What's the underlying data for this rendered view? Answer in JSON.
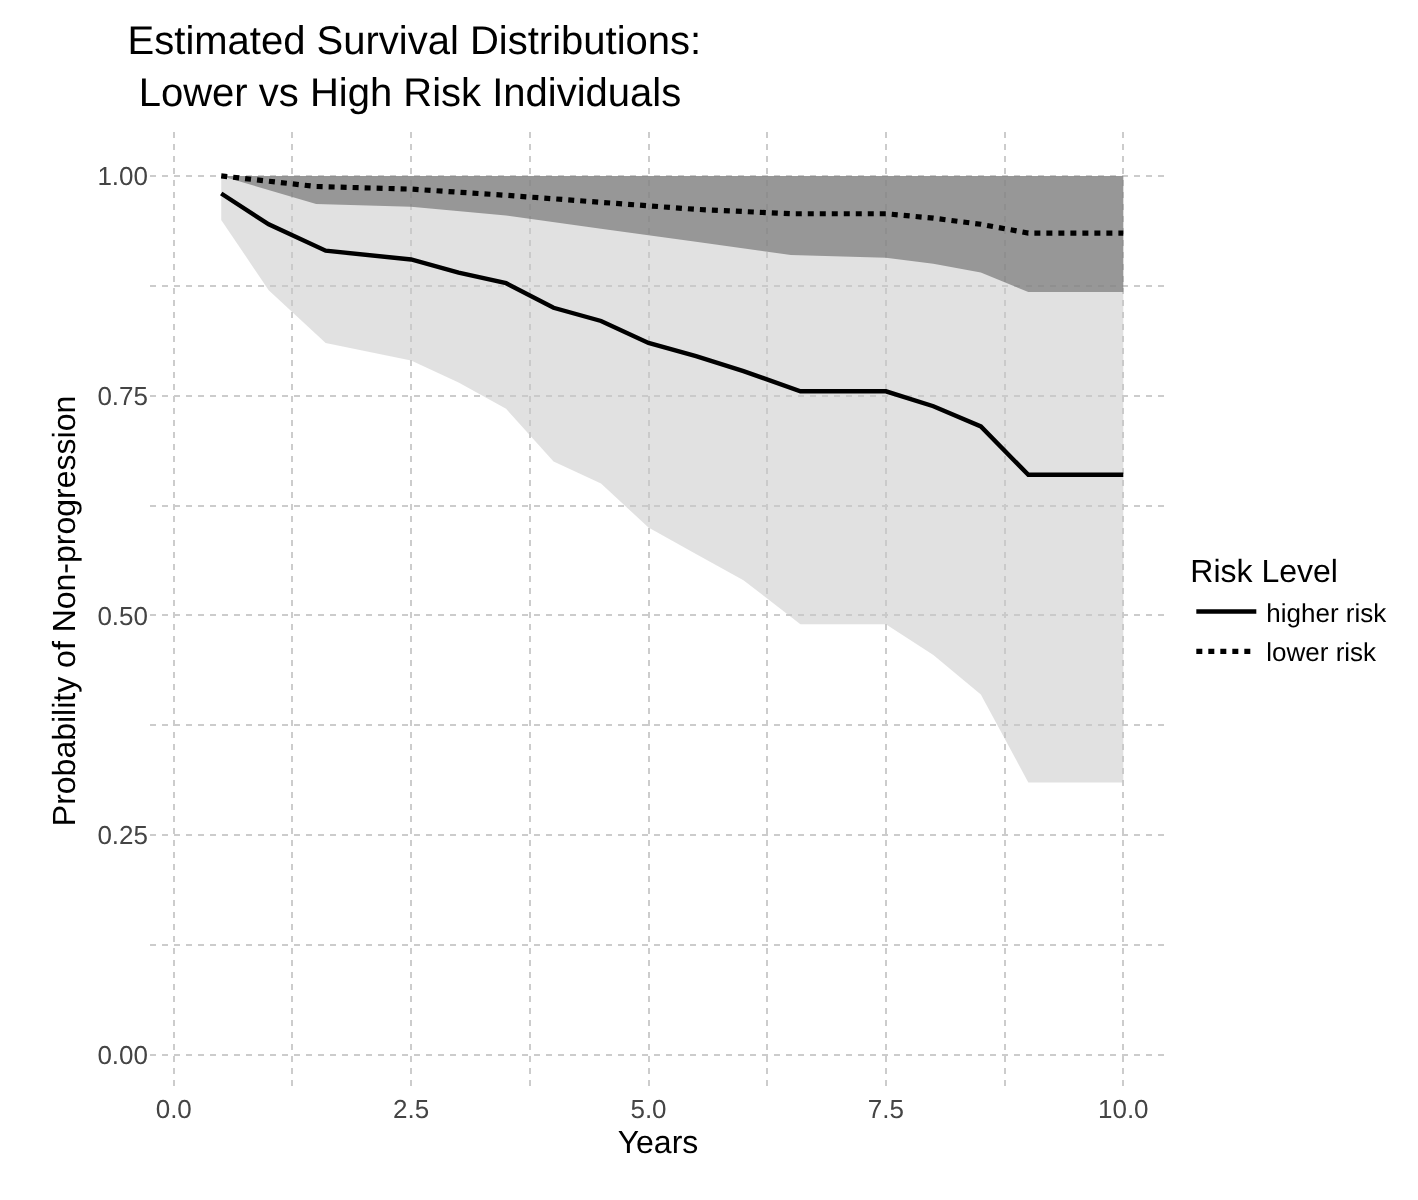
{
  "chart_data": {
    "type": "step",
    "title": "Estimated Survival Distributions:\n Lower vs High Risk Individuals",
    "xlabel": "Years",
    "ylabel": "Probability of Non-progression",
    "legend_title": "Risk Level",
    "legend": "right",
    "grid": true,
    "xlim": [
      -0.25,
      10.45
    ],
    "ylim": [
      -0.04,
      1.05
    ],
    "xticks": [
      {
        "value": 0,
        "label": "0.0"
      },
      {
        "value": 1.25,
        "label": null
      },
      {
        "value": 2.5,
        "label": "2.5"
      },
      {
        "value": 3.75,
        "label": null
      },
      {
        "value": 5,
        "label": "5.0"
      },
      {
        "value": 6.25,
        "label": null
      },
      {
        "value": 7.5,
        "label": "7.5"
      },
      {
        "value": 8.75,
        "label": null
      },
      {
        "value": 10,
        "label": "10.0"
      }
    ],
    "yticks": [
      {
        "value": 0,
        "label": "0.00"
      },
      {
        "value": 0.125,
        "label": null
      },
      {
        "value": 0.25,
        "label": "0.25"
      },
      {
        "value": 0.375,
        "label": null
      },
      {
        "value": 0.5,
        "label": "0.50"
      },
      {
        "value": 0.625,
        "label": null
      },
      {
        "value": 0.75,
        "label": "0.75"
      },
      {
        "value": 0.875,
        "label": null
      },
      {
        "value": 1,
        "label": "1.00"
      }
    ],
    "series": [
      {
        "name": "higher risk",
        "color": "#000000",
        "line_style": "solid",
        "x": [
          0.5,
          1.0,
          1.6,
          2.5,
          3.0,
          3.5,
          4.0,
          4.5,
          5.0,
          5.5,
          6.0,
          6.6,
          7.5,
          8.0,
          8.5,
          9.0,
          10.0
        ],
        "values": [
          0.98,
          0.945,
          0.915,
          0.905,
          0.89,
          0.878,
          0.85,
          0.835,
          0.81,
          0.795,
          0.778,
          0.755,
          0.755,
          0.738,
          0.715,
          0.66,
          0.66
        ],
        "lower": [
          0.95,
          0.87,
          0.81,
          0.79,
          0.765,
          0.735,
          0.675,
          0.65,
          0.6,
          0.57,
          0.54,
          0.49,
          0.49,
          0.455,
          0.41,
          0.31,
          0.31
        ],
        "upper": [
          1,
          1,
          1,
          1,
          1,
          1,
          1,
          1,
          1,
          1,
          1,
          1,
          1,
          1,
          1,
          1,
          1
        ]
      },
      {
        "name": "lower risk",
        "color": "#000000",
        "line_style": "dotted",
        "x": [
          0.5,
          1.5,
          2.5,
          3.5,
          4.5,
          5.5,
          6.5,
          7.5,
          8.0,
          8.5,
          9.0,
          10.0
        ],
        "values": [
          1.0,
          0.988,
          0.985,
          0.978,
          0.97,
          0.962,
          0.957,
          0.957,
          0.952,
          0.945,
          0.935,
          0.935
        ],
        "lower": [
          1.0,
          0.968,
          0.965,
          0.955,
          0.94,
          0.925,
          0.91,
          0.907,
          0.9,
          0.89,
          0.868,
          0.868
        ],
        "upper": [
          1,
          1,
          1,
          1,
          1,
          1,
          1,
          1,
          1,
          1,
          1,
          1
        ]
      }
    ]
  }
}
